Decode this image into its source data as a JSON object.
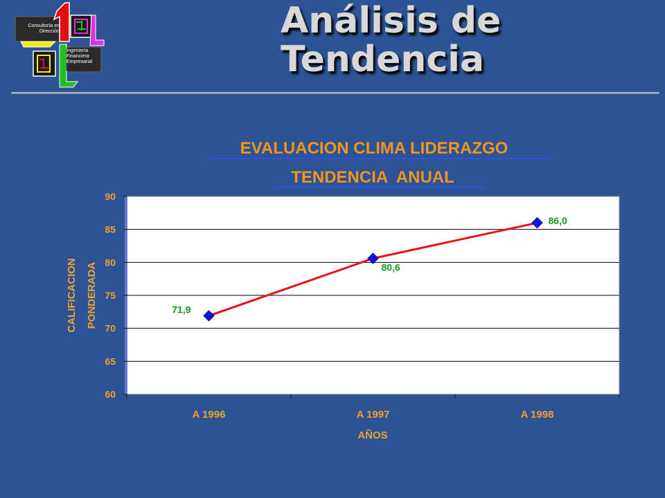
{
  "slide": {
    "title_line1": "Análisis de",
    "title_line2": "Tendencia"
  },
  "logo": {
    "text_top": [
      "Consultoría en",
      "Dirección"
    ],
    "text_bottom": [
      "Ingeniería",
      "Financiera",
      "Empresarial"
    ],
    "colors": {
      "red": "#e01010",
      "green": "#20c020",
      "yellow": "#f0f010",
      "magenta": "#e030e0",
      "blue": "#1020f0",
      "white": "#ffffff"
    }
  },
  "colors": {
    "background": "#2c5494",
    "chart_text": "#f0a030",
    "chart_title": "#f7941d",
    "title_underline": "#3050e0",
    "axis_tick_text": "#f0a030",
    "line": "#ee1111",
    "marker": "#1010dd",
    "data_label": "#129a12",
    "plot_bg": "#ffffff",
    "grid": "#000000"
  },
  "chart_data": {
    "type": "line",
    "title": "EVALUACION CLIMA LIDERAZGO",
    "subtitle": "TENDENCIA  ANUAL",
    "categories": [
      "A 1996",
      "A  1997",
      "A  1998"
    ],
    "series": [
      {
        "values": [
          71.9,
          80.6,
          86.0
        ],
        "labels": [
          "71,9",
          "80,6",
          "86,0"
        ]
      }
    ],
    "xlabel": "AÑOS",
    "ylabel_lines": [
      "CALIFICACION",
      "PONDERADA"
    ],
    "ylim": [
      60,
      90
    ],
    "yticks": [
      60,
      65,
      70,
      75,
      80,
      85,
      90
    ],
    "grid": true,
    "legend": "none",
    "marker": "diamond"
  }
}
